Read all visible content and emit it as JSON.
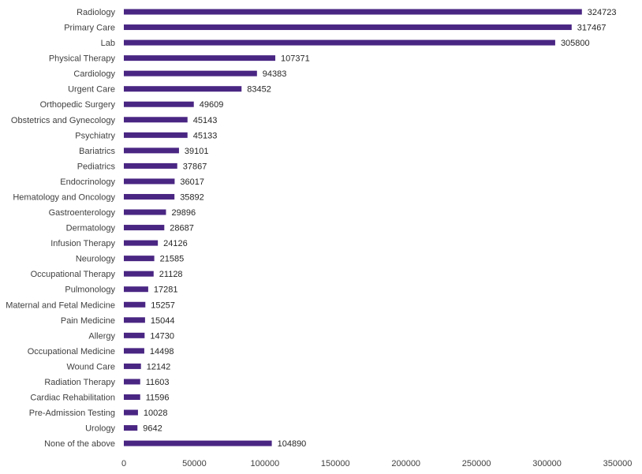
{
  "chart_data": {
    "type": "bar",
    "orientation": "horizontal",
    "title": "",
    "xlabel": "",
    "ylabel": "",
    "xlim": [
      0,
      350000
    ],
    "x_ticks": [
      0,
      50000,
      100000,
      150000,
      200000,
      250000,
      300000,
      350000
    ],
    "x_tick_labels": [
      "0",
      "50000",
      "100000",
      "150000",
      "200000",
      "250000",
      "300000",
      "350000"
    ],
    "grid": false,
    "legend": "none",
    "bar_color": "#4a2683",
    "categories": [
      "Radiology",
      "Primary Care",
      "Lab",
      "Physical Therapy",
      "Cardiology",
      "Urgent Care",
      "Orthopedic Surgery",
      "Obstetrics and Gynecology",
      "Psychiatry",
      "Bariatrics",
      "Pediatrics",
      "Endocrinology",
      "Hematology and Oncology",
      "Gastroenterology",
      "Dermatology",
      "Infusion Therapy",
      "Neurology",
      "Occupational Therapy",
      "Pulmonology",
      "Maternal and Fetal Medicine",
      "Pain Medicine",
      "Allergy",
      "Occupational Medicine",
      "Wound Care",
      "Radiation Therapy",
      "Cardiac Rehabilitation",
      "Pre-Admission Testing",
      "Urology",
      "None of the above"
    ],
    "values": [
      324723,
      317467,
      305800,
      107371,
      94383,
      83452,
      49609,
      45143,
      45133,
      39101,
      37867,
      36017,
      35892,
      29896,
      28687,
      24126,
      21585,
      21128,
      17281,
      15257,
      15044,
      14730,
      14498,
      12142,
      11603,
      11596,
      10028,
      9642,
      104890
    ],
    "value_labels": [
      "324723",
      "317467",
      "305800",
      "107371",
      "94383",
      "83452",
      "49609",
      "45143",
      "45133",
      "39101",
      "37867",
      "36017",
      "35892",
      "29896",
      "28687",
      "24126",
      "21585",
      "21128",
      "17281",
      "15257",
      "15044",
      "14730",
      "14498",
      "12142",
      "11603",
      "11596",
      "10028",
      "9642",
      "104890"
    ]
  }
}
